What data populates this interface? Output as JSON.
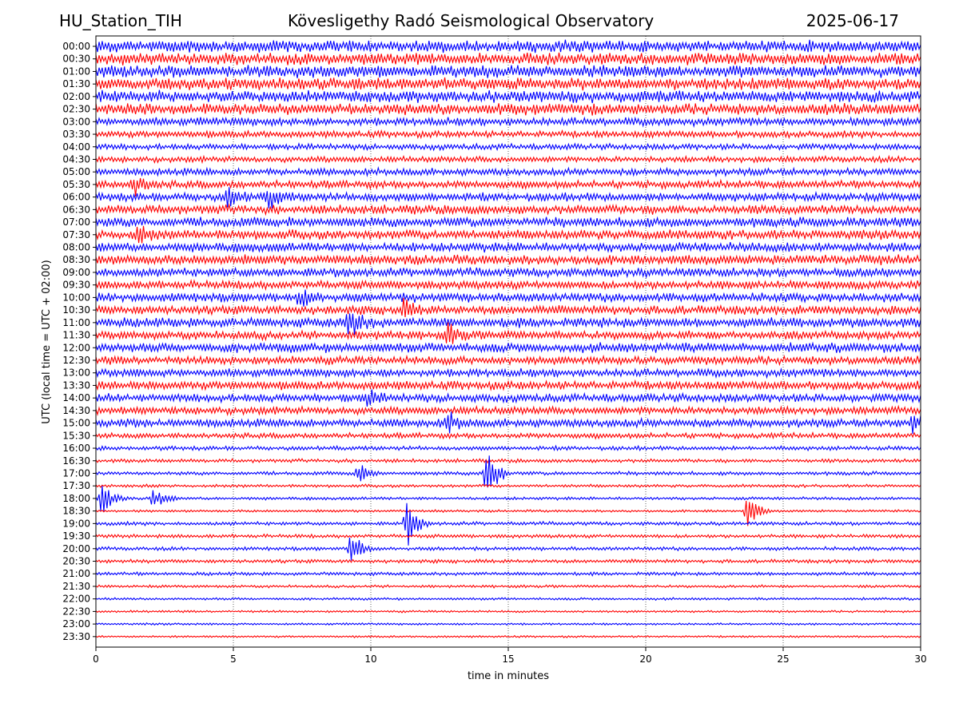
{
  "header": {
    "station": "HU_Station_TIH",
    "observatory": "Kövesligethy Radó Seismological Observatory",
    "date": "2025-06-17"
  },
  "chart_data": {
    "type": "line",
    "title": "Kövesligethy Radó Seismological Observatory",
    "xlabel": "time in minutes",
    "ylabel": "UTC (local time = UTC + 02:00)",
    "xlim": [
      0,
      30
    ],
    "xticks": [
      0,
      5,
      10,
      15,
      20,
      25,
      30
    ],
    "grid": "vertical dotted at x ticks",
    "series_colors": [
      "#0000ff",
      "#ff0000"
    ],
    "rows": [
      {
        "label": "00:00",
        "amp": 1.0
      },
      {
        "label": "00:30",
        "amp": 1.0
      },
      {
        "label": "01:00",
        "amp": 1.0
      },
      {
        "label": "01:30",
        "amp": 1.0
      },
      {
        "label": "02:00",
        "amp": 1.0
      },
      {
        "label": "02:30",
        "amp": 0.95
      },
      {
        "label": "03:00",
        "amp": 0.7
      },
      {
        "label": "03:30",
        "amp": 0.55
      },
      {
        "label": "04:00",
        "amp": 0.5
      },
      {
        "label": "04:30",
        "amp": 0.5
      },
      {
        "label": "05:00",
        "amp": 0.6
      },
      {
        "label": "05:30",
        "amp": 0.65
      },
      {
        "label": "06:00",
        "amp": 0.7
      },
      {
        "label": "06:30",
        "amp": 0.75
      },
      {
        "label": "07:00",
        "amp": 0.8
      },
      {
        "label": "07:30",
        "amp": 0.8
      },
      {
        "label": "08:00",
        "amp": 0.8
      },
      {
        "label": "08:30",
        "amp": 0.8
      },
      {
        "label": "09:00",
        "amp": 0.75
      },
      {
        "label": "09:30",
        "amp": 0.7
      },
      {
        "label": "10:00",
        "amp": 0.75
      },
      {
        "label": "10:30",
        "amp": 0.75
      },
      {
        "label": "11:00",
        "amp": 0.8
      },
      {
        "label": "11:30",
        "amp": 0.7
      },
      {
        "label": "12:00",
        "amp": 0.8
      },
      {
        "label": "12:30",
        "amp": 0.7
      },
      {
        "label": "13:00",
        "amp": 0.7
      },
      {
        "label": "13:30",
        "amp": 0.7
      },
      {
        "label": "14:00",
        "amp": 0.7
      },
      {
        "label": "14:30",
        "amp": 0.65
      },
      {
        "label": "15:00",
        "amp": 0.7
      },
      {
        "label": "15:30",
        "amp": 0.45
      },
      {
        "label": "16:00",
        "amp": 0.35
      },
      {
        "label": "16:30",
        "amp": 0.3
      },
      {
        "label": "17:00",
        "amp": 0.3
      },
      {
        "label": "17:30",
        "amp": 0.25
      },
      {
        "label": "18:00",
        "amp": 0.25
      },
      {
        "label": "18:30",
        "amp": 0.2
      },
      {
        "label": "19:00",
        "amp": 0.3
      },
      {
        "label": "19:30",
        "amp": 0.3
      },
      {
        "label": "20:00",
        "amp": 0.3
      },
      {
        "label": "20:30",
        "amp": 0.3
      },
      {
        "label": "21:00",
        "amp": 0.28
      },
      {
        "label": "21:30",
        "amp": 0.22
      },
      {
        "label": "22:00",
        "amp": 0.2
      },
      {
        "label": "22:30",
        "amp": 0.18
      },
      {
        "label": "23:00",
        "amp": 0.18
      },
      {
        "label": "23:30",
        "amp": 0.16
      }
    ],
    "events": [
      {
        "row": "05:30",
        "x": 1.4,
        "amp": 2.0
      },
      {
        "row": "06:00",
        "x": 4.8,
        "amp": 1.8
      },
      {
        "row": "06:00",
        "x": 6.3,
        "amp": 2.0
      },
      {
        "row": "07:30",
        "x": 1.5,
        "amp": 1.8
      },
      {
        "row": "10:00",
        "x": 7.4,
        "amp": 2.0
      },
      {
        "row": "11:00",
        "x": 9.2,
        "amp": 3.0
      },
      {
        "row": "10:30",
        "x": 11.2,
        "amp": 1.6
      },
      {
        "row": "11:30",
        "x": 12.8,
        "amp": 1.8
      },
      {
        "row": "14:00",
        "x": 9.8,
        "amp": 1.6
      },
      {
        "row": "15:00",
        "x": 12.8,
        "amp": 1.8
      },
      {
        "row": "15:00",
        "x": 29.7,
        "amp": 1.6
      },
      {
        "row": "17:00",
        "x": 14.2,
        "amp": 6.0
      },
      {
        "row": "17:00",
        "x": 9.5,
        "amp": 2.0
      },
      {
        "row": "18:00",
        "x": 0.2,
        "amp": 3.0
      },
      {
        "row": "18:00",
        "x": 2.1,
        "amp": 2.0
      },
      {
        "row": "18:30",
        "x": 23.7,
        "amp": 3.0
      },
      {
        "row": "19:00",
        "x": 11.3,
        "amp": 4.5
      },
      {
        "row": "20:00",
        "x": 9.3,
        "amp": 3.5
      }
    ]
  }
}
